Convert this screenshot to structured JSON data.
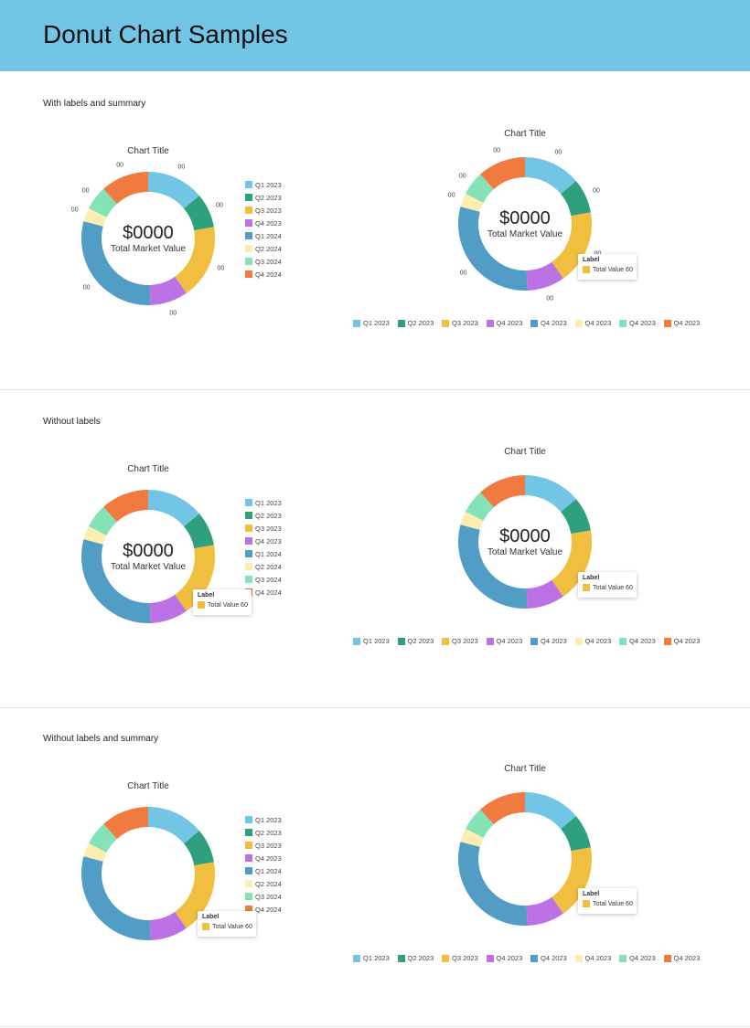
{
  "header": {
    "title": "Donut Chart Samples"
  },
  "sections": [
    {
      "label": "With labels and summary"
    },
    {
      "label": "Without labels"
    },
    {
      "label": "Without labels and summary"
    }
  ],
  "colors": [
    "#72C5E5",
    "#2FA07D",
    "#F0BF3F",
    "#BC72E4",
    "#529DC6",
    "#FDEDB0",
    "#84E3B6",
    "#F07A3F"
  ],
  "chart_data": {
    "type": "pie",
    "donut": true,
    "title": "Chart Title",
    "categories": [
      "Q1 2023",
      "Q2 2023",
      "Q3 2023",
      "Q4 2023",
      "Q1 2024",
      "Q2 2024",
      "Q3 2024",
      "Q4 2024"
    ],
    "values": [
      50,
      30,
      65,
      33,
      107,
      12,
      21,
      42
    ],
    "data_labels": [
      "00",
      "00",
      "00",
      "00",
      "00",
      "00",
      "00",
      "00"
    ],
    "bottom_legend": [
      "Q1 2023",
      "Q2 2023",
      "Q3 2023",
      "Q4 2023",
      "Q4 2023",
      "Q4 2023",
      "Q4 2023",
      "Q4 2023"
    ],
    "summary": {
      "value": "$0000",
      "label": "Total Market Value"
    },
    "tooltip": {
      "title": "Label",
      "text": "Total Value 60"
    }
  }
}
